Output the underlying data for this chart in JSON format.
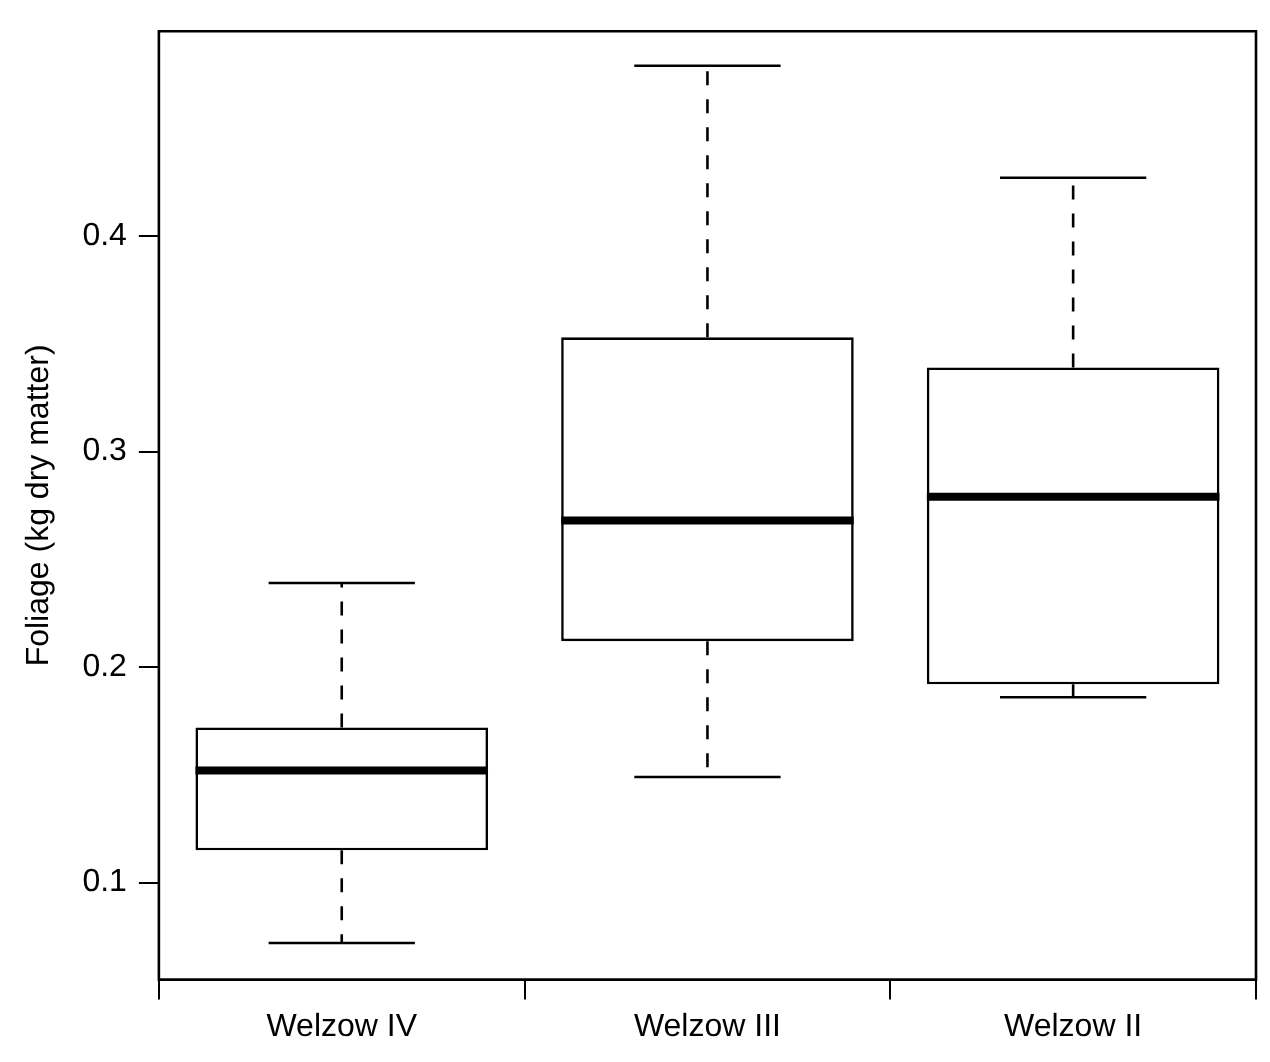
{
  "chart_data": {
    "type": "box",
    "ylabel": "Foliage (kg dry matter)",
    "categories": [
      "Welzow IV",
      "Welzow III",
      "Welzow II"
    ],
    "boxes": [
      {
        "low": 0.072,
        "q1": 0.115,
        "median": 0.152,
        "q3": 0.172,
        "high": 0.239
      },
      {
        "low": 0.149,
        "q1": 0.212,
        "median": 0.268,
        "q3": 0.353,
        "high": 0.479
      },
      {
        "low": 0.186,
        "q1": 0.192,
        "median": 0.279,
        "q3": 0.339,
        "high": 0.427
      }
    ],
    "ylim": [
      0.055,
      0.495
    ],
    "yticks": [
      0.1,
      0.2,
      0.3,
      0.4
    ],
    "grid": false
  }
}
